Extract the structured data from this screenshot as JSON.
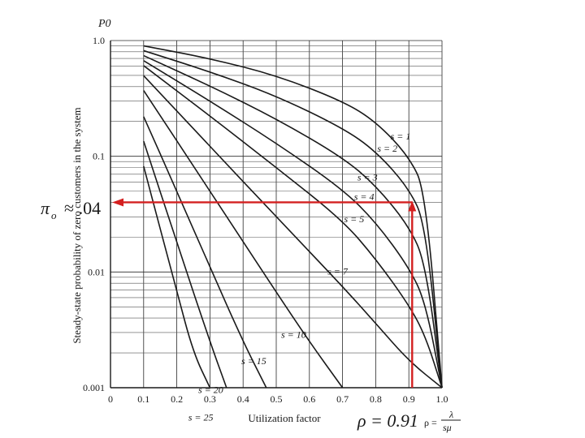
{
  "chart_data": {
    "type": "line",
    "title": "",
    "xlabel": "Utilization factor",
    "ylabel": "Steady-state probability of zero customers in the system",
    "y_axis_symbol": "P0",
    "x_axis_symbol": "ρ = λ / sμ",
    "xlim": [
      0,
      1.0
    ],
    "ylim": [
      0.001,
      1.0
    ],
    "yscale": "log",
    "grid": true,
    "x_tick_labels": [
      "0",
      "0.1",
      "0.2",
      "0.3",
      "0.4",
      "0.5",
      "0.6",
      "0.7",
      "0.8",
      "0.9",
      "1.0"
    ],
    "y_tick_labels": [
      "1.0",
      "0.1",
      "0.01",
      "0.001"
    ],
    "series": [
      {
        "name": "s = 1",
        "x": [
          0.1,
          0.3,
          0.5,
          0.7,
          0.8,
          0.9,
          0.95,
          1.0
        ],
        "y": [
          0.9,
          0.7,
          0.5,
          0.3,
          0.2,
          0.1,
          0.05,
          0.001
        ]
      },
      {
        "name": "s = 2",
        "x": [
          0.1,
          0.3,
          0.5,
          0.7,
          0.8,
          0.9,
          0.95,
          1.0
        ],
        "y": [
          0.818,
          0.538,
          0.333,
          0.176,
          0.111,
          0.053,
          0.026,
          0.001
        ]
      },
      {
        "name": "s = 3",
        "x": [
          0.1,
          0.3,
          0.5,
          0.7,
          0.8,
          0.9,
          0.95,
          1.0
        ],
        "y": [
          0.741,
          0.406,
          0.211,
          0.098,
          0.056,
          0.025,
          0.012,
          0.001
        ]
      },
      {
        "name": "s = 4",
        "x": [
          0.1,
          0.3,
          0.5,
          0.7,
          0.8,
          0.9,
          0.95,
          1.0
        ],
        "y": [
          0.67,
          0.3,
          0.13,
          0.052,
          0.027,
          0.011,
          0.0055,
          0.001
        ]
      },
      {
        "name": "s = 5",
        "x": [
          0.1,
          0.3,
          0.5,
          0.7,
          0.8,
          0.9,
          0.95,
          1.0
        ],
        "y": [
          0.607,
          0.223,
          0.08,
          0.028,
          0.013,
          0.0052,
          0.0028,
          0.001
        ]
      },
      {
        "name": "s = 7",
        "x": [
          0.1,
          0.3,
          0.5,
          0.7,
          0.8,
          0.9,
          1.0
        ],
        "y": [
          0.497,
          0.122,
          0.03,
          0.0075,
          0.0036,
          0.0017,
          0.001
        ]
      },
      {
        "name": "s = 10",
        "x": [
          0.1,
          0.3,
          0.5,
          0.6,
          0.7
        ],
        "y": [
          0.37,
          0.05,
          0.0067,
          0.0025,
          0.001
        ]
      },
      {
        "name": "s = 15",
        "x": [
          0.1,
          0.2,
          0.3,
          0.4,
          0.47
        ],
        "y": [
          0.22,
          0.05,
          0.011,
          0.0025,
          0.001
        ]
      },
      {
        "name": "s = 20",
        "x": [
          0.1,
          0.2,
          0.3,
          0.35
        ],
        "y": [
          0.135,
          0.018,
          0.0025,
          0.001
        ]
      },
      {
        "name": "s = 25",
        "x": [
          0.1,
          0.2,
          0.25,
          0.3
        ],
        "y": [
          0.082,
          0.0068,
          0.002,
          0.001
        ]
      }
    ],
    "annotations": {
      "pi_label": "π",
      "pi_subscript": "o",
      "pi_value": "≈ .04",
      "rho_label": "ρ = 0.91",
      "rho_value": 0.91,
      "p0_value": 0.04,
      "arrow_color": "#d42020"
    }
  }
}
